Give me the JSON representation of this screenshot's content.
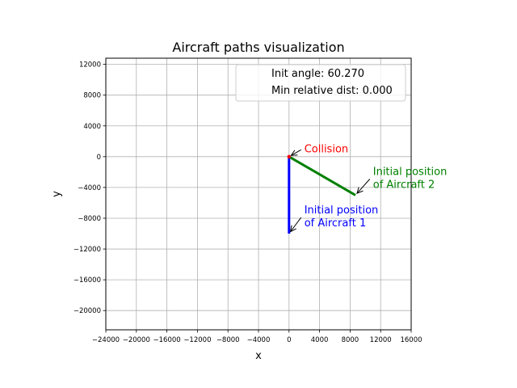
{
  "chart_data": {
    "type": "line",
    "title": "Aircraft paths visualization",
    "xlabel": "x",
    "ylabel": "y",
    "xlim": [
      -24000,
      16000
    ],
    "ylim": [
      -22500,
      12800
    ],
    "xticks": [
      -24000,
      -20000,
      -16000,
      -12000,
      -8000,
      -4000,
      0,
      4000,
      8000,
      12000,
      16000
    ],
    "yticks": [
      -20000,
      -16000,
      -12000,
      -8000,
      -4000,
      0,
      4000,
      8000,
      12000
    ],
    "grid": true,
    "legend": {
      "placement": "top-right",
      "entries": [
        "Init angle: 60.270",
        "Min relative dist: 0.000"
      ]
    },
    "series": [
      {
        "color": "#0000ff",
        "x": [
          0,
          0
        ],
        "y": [
          -10000,
          0
        ]
      },
      {
        "color": "#008000",
        "x": [
          8700,
          0
        ],
        "y": [
          -5000,
          0
        ]
      }
    ],
    "annotations": [
      {
        "text": "Collision",
        "color": "#ff0000",
        "point": [
          0,
          0
        ],
        "text_pos": [
          2000,
          1000
        ]
      },
      {
        "text": [
          "Initial position",
          "of Aircraft 2"
        ],
        "color": "#008000",
        "point": [
          8700,
          -5000
        ],
        "text_pos": [
          11000,
          -2800
        ]
      },
      {
        "text": [
          "Initial position",
          "of Aircraft 1"
        ],
        "color": "#0000ff",
        "point": [
          0,
          -10000
        ],
        "text_pos": [
          2000,
          -7800
        ]
      }
    ]
  }
}
